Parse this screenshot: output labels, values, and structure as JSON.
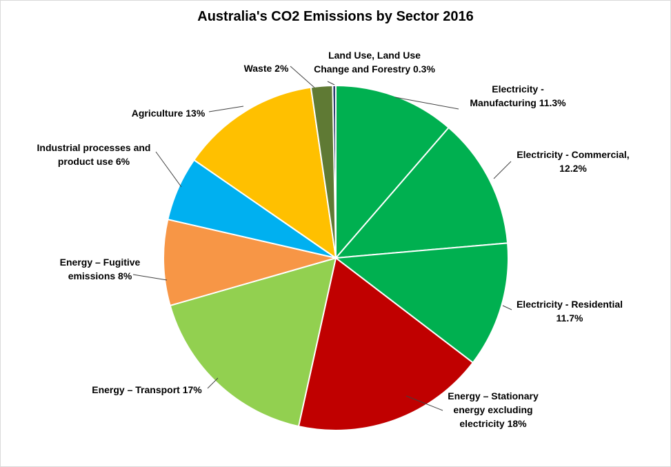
{
  "chart_data": {
    "type": "pie",
    "title": "Australia's CO2 Emissions by Sector 2016",
    "slices": [
      {
        "name": "Land Use, Land Use Change and Forestry",
        "label_lines": [
          "Land Use, Land Use",
          "Change and Forestry 0.3%"
        ],
        "value": 0.3,
        "color": "#2f3e72"
      },
      {
        "name": "Electricity - Manufacturing",
        "label_lines": [
          "Electricity -",
          "Manufacturing  11.3%"
        ],
        "value": 11.3,
        "color": "#00b050"
      },
      {
        "name": "Electricity - Commercial",
        "label_lines": [
          "Electricity  - Commercial,",
          "12.2%"
        ],
        "value": 12.2,
        "color": "#00b050"
      },
      {
        "name": "Electricity - Residential",
        "label_lines": [
          "Electricity  - Residential",
          "11.7%"
        ],
        "value": 11.7,
        "color": "#00b050"
      },
      {
        "name": "Energy – Stationary energy excluding electricity",
        "label_lines": [
          "Energy – Stationary",
          "energy excluding",
          "electricity 18%"
        ],
        "value": 18,
        "color": "#c00000"
      },
      {
        "name": "Energy – Transport",
        "label_lines": [
          "Energy – Transport  17%"
        ],
        "value": 17,
        "color": "#92d050"
      },
      {
        "name": "Energy – Fugitive emissions",
        "label_lines": [
          "Energy – Fugitive",
          "emissions 8%"
        ],
        "value": 8,
        "color": "#f79646"
      },
      {
        "name": "Industrial processes and product use",
        "label_lines": [
          "Industrial processes and",
          "product use 6%"
        ],
        "value": 6,
        "color": "#00b0f0"
      },
      {
        "name": "Agriculture",
        "label_lines": [
          "Agriculture  13%"
        ],
        "value": 13,
        "color": "#ffc000"
      },
      {
        "name": "Waste",
        "label_lines": [
          "Waste  2%"
        ],
        "value": 2,
        "color": "#5f7a34"
      }
    ]
  }
}
